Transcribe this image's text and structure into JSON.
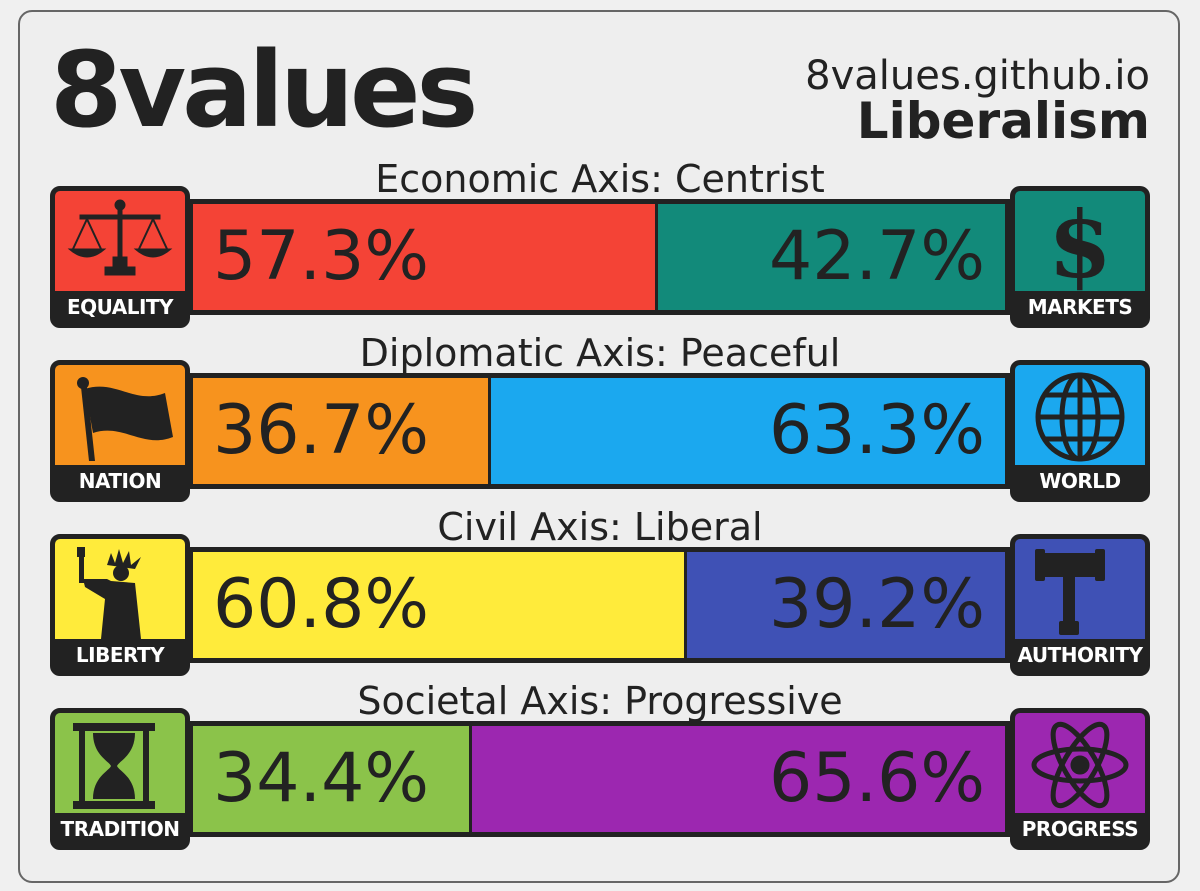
{
  "header": {
    "title": "8values",
    "site": "8values.github.io",
    "ideology": "Liberalism"
  },
  "axes": [
    {
      "label": "Economic Axis: Centrist",
      "left": {
        "name": "EQUALITY",
        "value": "57.3%",
        "fraction": 0.573,
        "color": "#f44336",
        "icon": "scales-icon"
      },
      "right": {
        "name": "MARKETS",
        "value": "42.7%",
        "fraction": 0.427,
        "color": "#128a7a",
        "icon": "dollar-icon"
      }
    },
    {
      "label": "Diplomatic Axis: Peaceful",
      "left": {
        "name": "NATION",
        "value": "36.7%",
        "fraction": 0.367,
        "color": "#f7931e",
        "icon": "flag-icon"
      },
      "right": {
        "name": "WORLD",
        "value": "63.3%",
        "fraction": 0.633,
        "color": "#1ba8ef",
        "icon": "globe-icon"
      }
    },
    {
      "label": "Civil Axis: Liberal",
      "left": {
        "name": "LIBERTY",
        "value": "60.8%",
        "fraction": 0.608,
        "color": "#ffeb3b",
        "icon": "statue-of-liberty-icon"
      },
      "right": {
        "name": "AUTHORITY",
        "value": "39.2%",
        "fraction": 0.392,
        "color": "#3f51b5",
        "icon": "gavel-icon"
      }
    },
    {
      "label": "Societal Axis: Progressive",
      "left": {
        "name": "TRADITION",
        "value": "34.4%",
        "fraction": 0.344,
        "color": "#8bc34a",
        "icon": "hourglass-icon"
      },
      "right": {
        "name": "PROGRESS",
        "value": "65.6%",
        "fraction": 0.656,
        "color": "#9c27b0",
        "icon": "atom-icon"
      }
    }
  ]
}
